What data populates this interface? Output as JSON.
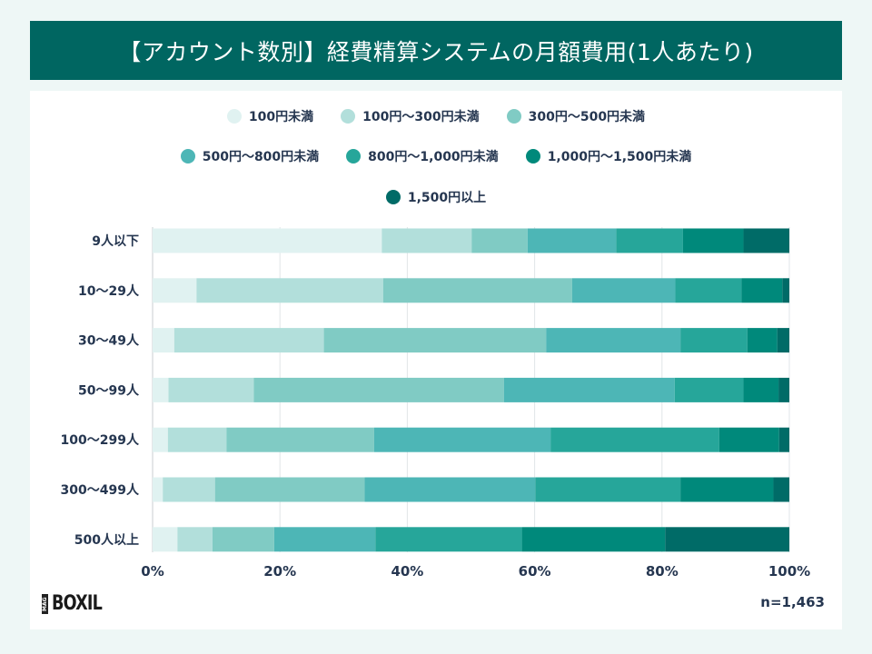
{
  "chart_data": {
    "type": "bar",
    "orientation": "horizontal",
    "stacked": true,
    "title": "【アカウント数別】経費精算システムの月額費用(1人あたり)",
    "categories": [
      "9人以下",
      "10〜29人",
      "30〜49人",
      "50〜99人",
      "100〜299人",
      "300〜499人",
      "500人以上"
    ],
    "series": [
      {
        "name": "100円未満",
        "color": "#e0f2f1",
        "values": [
          36.0,
          6.9,
          3.4,
          2.5,
          2.4,
          1.6,
          3.9
        ]
      },
      {
        "name": "100円〜300円未満",
        "color": "#b2dfdb",
        "values": [
          14.1,
          29.3,
          23.5,
          13.4,
          9.2,
          8.2,
          5.5
        ]
      },
      {
        "name": "300円〜500円未満",
        "color": "#80cbc4",
        "values": [
          8.8,
          29.7,
          34.9,
          39.3,
          23.2,
          23.5,
          9.7
        ]
      },
      {
        "name": "500円〜800円未満",
        "color": "#4db6b6",
        "values": [
          13.9,
          16.2,
          21.1,
          26.8,
          27.7,
          26.8,
          15.9
        ]
      },
      {
        "name": "800円〜1,000円未満",
        "color": "#26a69a",
        "values": [
          10.5,
          10.4,
          10.5,
          10.8,
          26.5,
          22.8,
          23.0
        ]
      },
      {
        "name": "1,000円〜1,500円未満",
        "color": "#00897b",
        "values": [
          9.5,
          6.4,
          4.7,
          5.5,
          9.4,
          14.6,
          22.5
        ]
      },
      {
        "name": "1,500円以上",
        "color": "#006b67",
        "values": [
          7.2,
          1.1,
          1.9,
          1.7,
          1.6,
          2.5,
          19.5
        ]
      }
    ],
    "xlim": [
      0,
      100
    ],
    "xticks": [
      "0%",
      "20%",
      "40%",
      "60%",
      "80%",
      "100%"
    ],
    "grid": true,
    "legend_position": "top"
  },
  "footer": {
    "logo": "MAG BOXIL",
    "n_label": "n=1,463"
  }
}
